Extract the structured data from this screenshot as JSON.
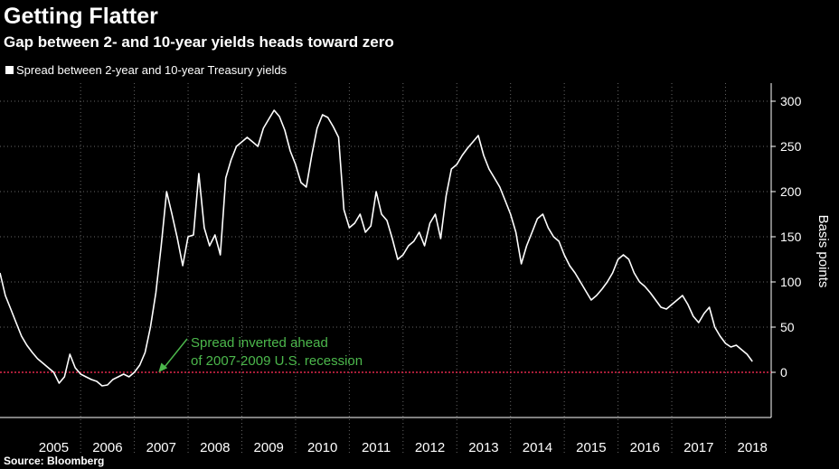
{
  "title": "Getting Flatter",
  "subtitle": "Gap between 2- and 10-year yields heads toward zero",
  "source": "Source: Bloomberg",
  "chart_data": {
    "type": "line",
    "title": "Getting Flatter",
    "subtitle": "Gap between 2- and 10-year yields heads toward zero",
    "ylabel": "Basis points",
    "ylim": [
      -50,
      320
    ],
    "xlim": [
      2004.5,
      2018.85
    ],
    "yticks": [
      0,
      50,
      100,
      150,
      200,
      250,
      300
    ],
    "xticks": [
      "2005",
      "2006",
      "2007",
      "2008",
      "2009",
      "2010",
      "2011",
      "2012",
      "2013",
      "2014",
      "2015",
      "2016",
      "2017",
      "2018"
    ],
    "grid": true,
    "legend_position": "top-left",
    "reference_line": {
      "y": 0,
      "color": "#e0284a",
      "style": "dotted"
    },
    "annotation": {
      "lines": [
        "Spread inverted ahead",
        "of 2007-2009 U.S. recession"
      ],
      "color": "#4cb84c",
      "points_to": [
        2007.5,
        0
      ]
    },
    "series": [
      {
        "name": "Spread between 2-year and 10-year Treasury yields",
        "color": "#ffffff",
        "x": [
          2004.5,
          2004.6,
          2004.7,
          2004.8,
          2004.9,
          2005.0,
          2005.1,
          2005.2,
          2005.3,
          2005.4,
          2005.5,
          2005.6,
          2005.7,
          2005.8,
          2005.9,
          2006.0,
          2006.1,
          2006.2,
          2006.3,
          2006.4,
          2006.5,
          2006.6,
          2006.7,
          2006.8,
          2006.9,
          2007.0,
          2007.1,
          2007.2,
          2007.3,
          2007.4,
          2007.5,
          2007.6,
          2007.7,
          2007.8,
          2007.9,
          2008.0,
          2008.1,
          2008.2,
          2008.3,
          2008.4,
          2008.5,
          2008.6,
          2008.7,
          2008.8,
          2008.9,
          2009.0,
          2009.1,
          2009.2,
          2009.3,
          2009.4,
          2009.5,
          2009.6,
          2009.7,
          2009.8,
          2009.9,
          2010.0,
          2010.1,
          2010.2,
          2010.3,
          2010.4,
          2010.5,
          2010.6,
          2010.7,
          2010.8,
          2010.9,
          2011.0,
          2011.1,
          2011.2,
          2011.3,
          2011.4,
          2011.5,
          2011.6,
          2011.7,
          2011.8,
          2011.9,
          2012.0,
          2012.1,
          2012.2,
          2012.3,
          2012.4,
          2012.5,
          2012.6,
          2012.7,
          2012.8,
          2012.9,
          2013.0,
          2013.1,
          2013.2,
          2013.3,
          2013.4,
          2013.5,
          2013.6,
          2013.7,
          2013.8,
          2013.9,
          2014.0,
          2014.1,
          2014.2,
          2014.3,
          2014.4,
          2014.5,
          2014.6,
          2014.7,
          2014.8,
          2014.9,
          2015.0,
          2015.1,
          2015.2,
          2015.3,
          2015.4,
          2015.5,
          2015.6,
          2015.7,
          2015.8,
          2015.9,
          2016.0,
          2016.1,
          2016.2,
          2016.3,
          2016.4,
          2016.5,
          2016.6,
          2016.7,
          2016.8,
          2016.9,
          2017.0,
          2017.1,
          2017.2,
          2017.3,
          2017.4,
          2017.5,
          2017.6,
          2017.7,
          2017.8,
          2017.9,
          2018.0,
          2018.1,
          2018.2,
          2018.3,
          2018.4,
          2018.5
        ],
        "values": [
          110,
          85,
          70,
          55,
          40,
          30,
          22,
          15,
          10,
          5,
          0,
          -12,
          -5,
          20,
          5,
          -2,
          -5,
          -8,
          -10,
          -15,
          -14,
          -8,
          -5,
          -2,
          -5,
          0,
          8,
          22,
          50,
          88,
          140,
          200,
          175,
          148,
          118,
          150,
          152,
          220,
          160,
          140,
          152,
          130,
          215,
          235,
          250,
          255,
          260,
          255,
          250,
          270,
          280,
          290,
          283,
          268,
          245,
          230,
          210,
          205,
          240,
          270,
          285,
          282,
          272,
          260,
          180,
          160,
          165,
          175,
          155,
          162,
          200,
          175,
          168,
          148,
          125,
          130,
          140,
          145,
          155,
          140,
          165,
          175,
          148,
          195,
          225,
          230,
          240,
          248,
          255,
          262,
          240,
          225,
          215,
          205,
          190,
          175,
          155,
          120,
          140,
          155,
          170,
          175,
          160,
          150,
          145,
          130,
          118,
          110,
          100,
          90,
          80,
          85,
          92,
          100,
          110,
          125,
          130,
          125,
          110,
          100,
          95,
          88,
          80,
          72,
          70,
          75,
          80,
          85,
          75,
          62,
          55,
          65,
          72,
          50,
          40,
          32,
          28,
          30,
          25,
          20,
          12
        ]
      }
    ]
  }
}
